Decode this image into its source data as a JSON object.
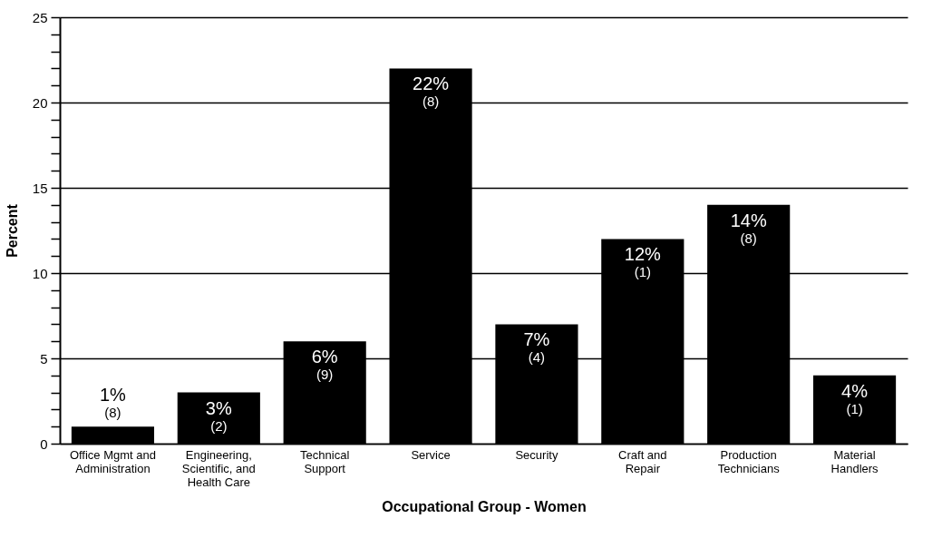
{
  "chart_data": {
    "type": "bar",
    "xlabel": "Occupational Group - Women",
    "ylabel": "Percent",
    "categories": [
      "Office Mgmt and Administration",
      "Engineering, Scientific, and Health Care",
      "Technical Support",
      "Service",
      "Security",
      "Craft and Repair",
      "Production Technicians",
      "Material Handlers"
    ],
    "values": [
      1,
      3,
      6,
      22,
      7,
      12,
      14,
      4
    ],
    "value_labels": [
      "1% (8)",
      "3% (2)",
      "6% (9)",
      "22% (8)",
      "7% (4)",
      "12% (1)",
      "14% (8)",
      "4% (1)"
    ],
    "color": "#000000",
    "ylim": [
      0,
      25
    ],
    "yticks": [
      0,
      {
        "value": 1,
        "label": null
      },
      {
        "value": 2,
        "label": null
      },
      {
        "value": 3,
        "label": null
      },
      {
        "value": 4,
        "label": null
      },
      5,
      {
        "value": 6,
        "label": null
      },
      {
        "value": 7,
        "label": null
      },
      {
        "value": 8,
        "label": null
      },
      {
        "value": 9,
        "label": null
      },
      10,
      {
        "value": 11,
        "label": null
      },
      {
        "value": 12,
        "label": null
      },
      {
        "value": 13,
        "label": null
      },
      {
        "value": 14,
        "label": null
      },
      15,
      {
        "value": 16,
        "label": null
      },
      {
        "value": 17,
        "label": null
      },
      {
        "value": 18,
        "label": null
      },
      {
        "value": 19,
        "label": null
      },
      20,
      {
        "value": 21,
        "label": null
      },
      {
        "value": 22,
        "label": null
      },
      {
        "value": 23,
        "label": null
      },
      {
        "value": 24,
        "label": null
      },
      25
    ],
    "grid": "y"
  }
}
